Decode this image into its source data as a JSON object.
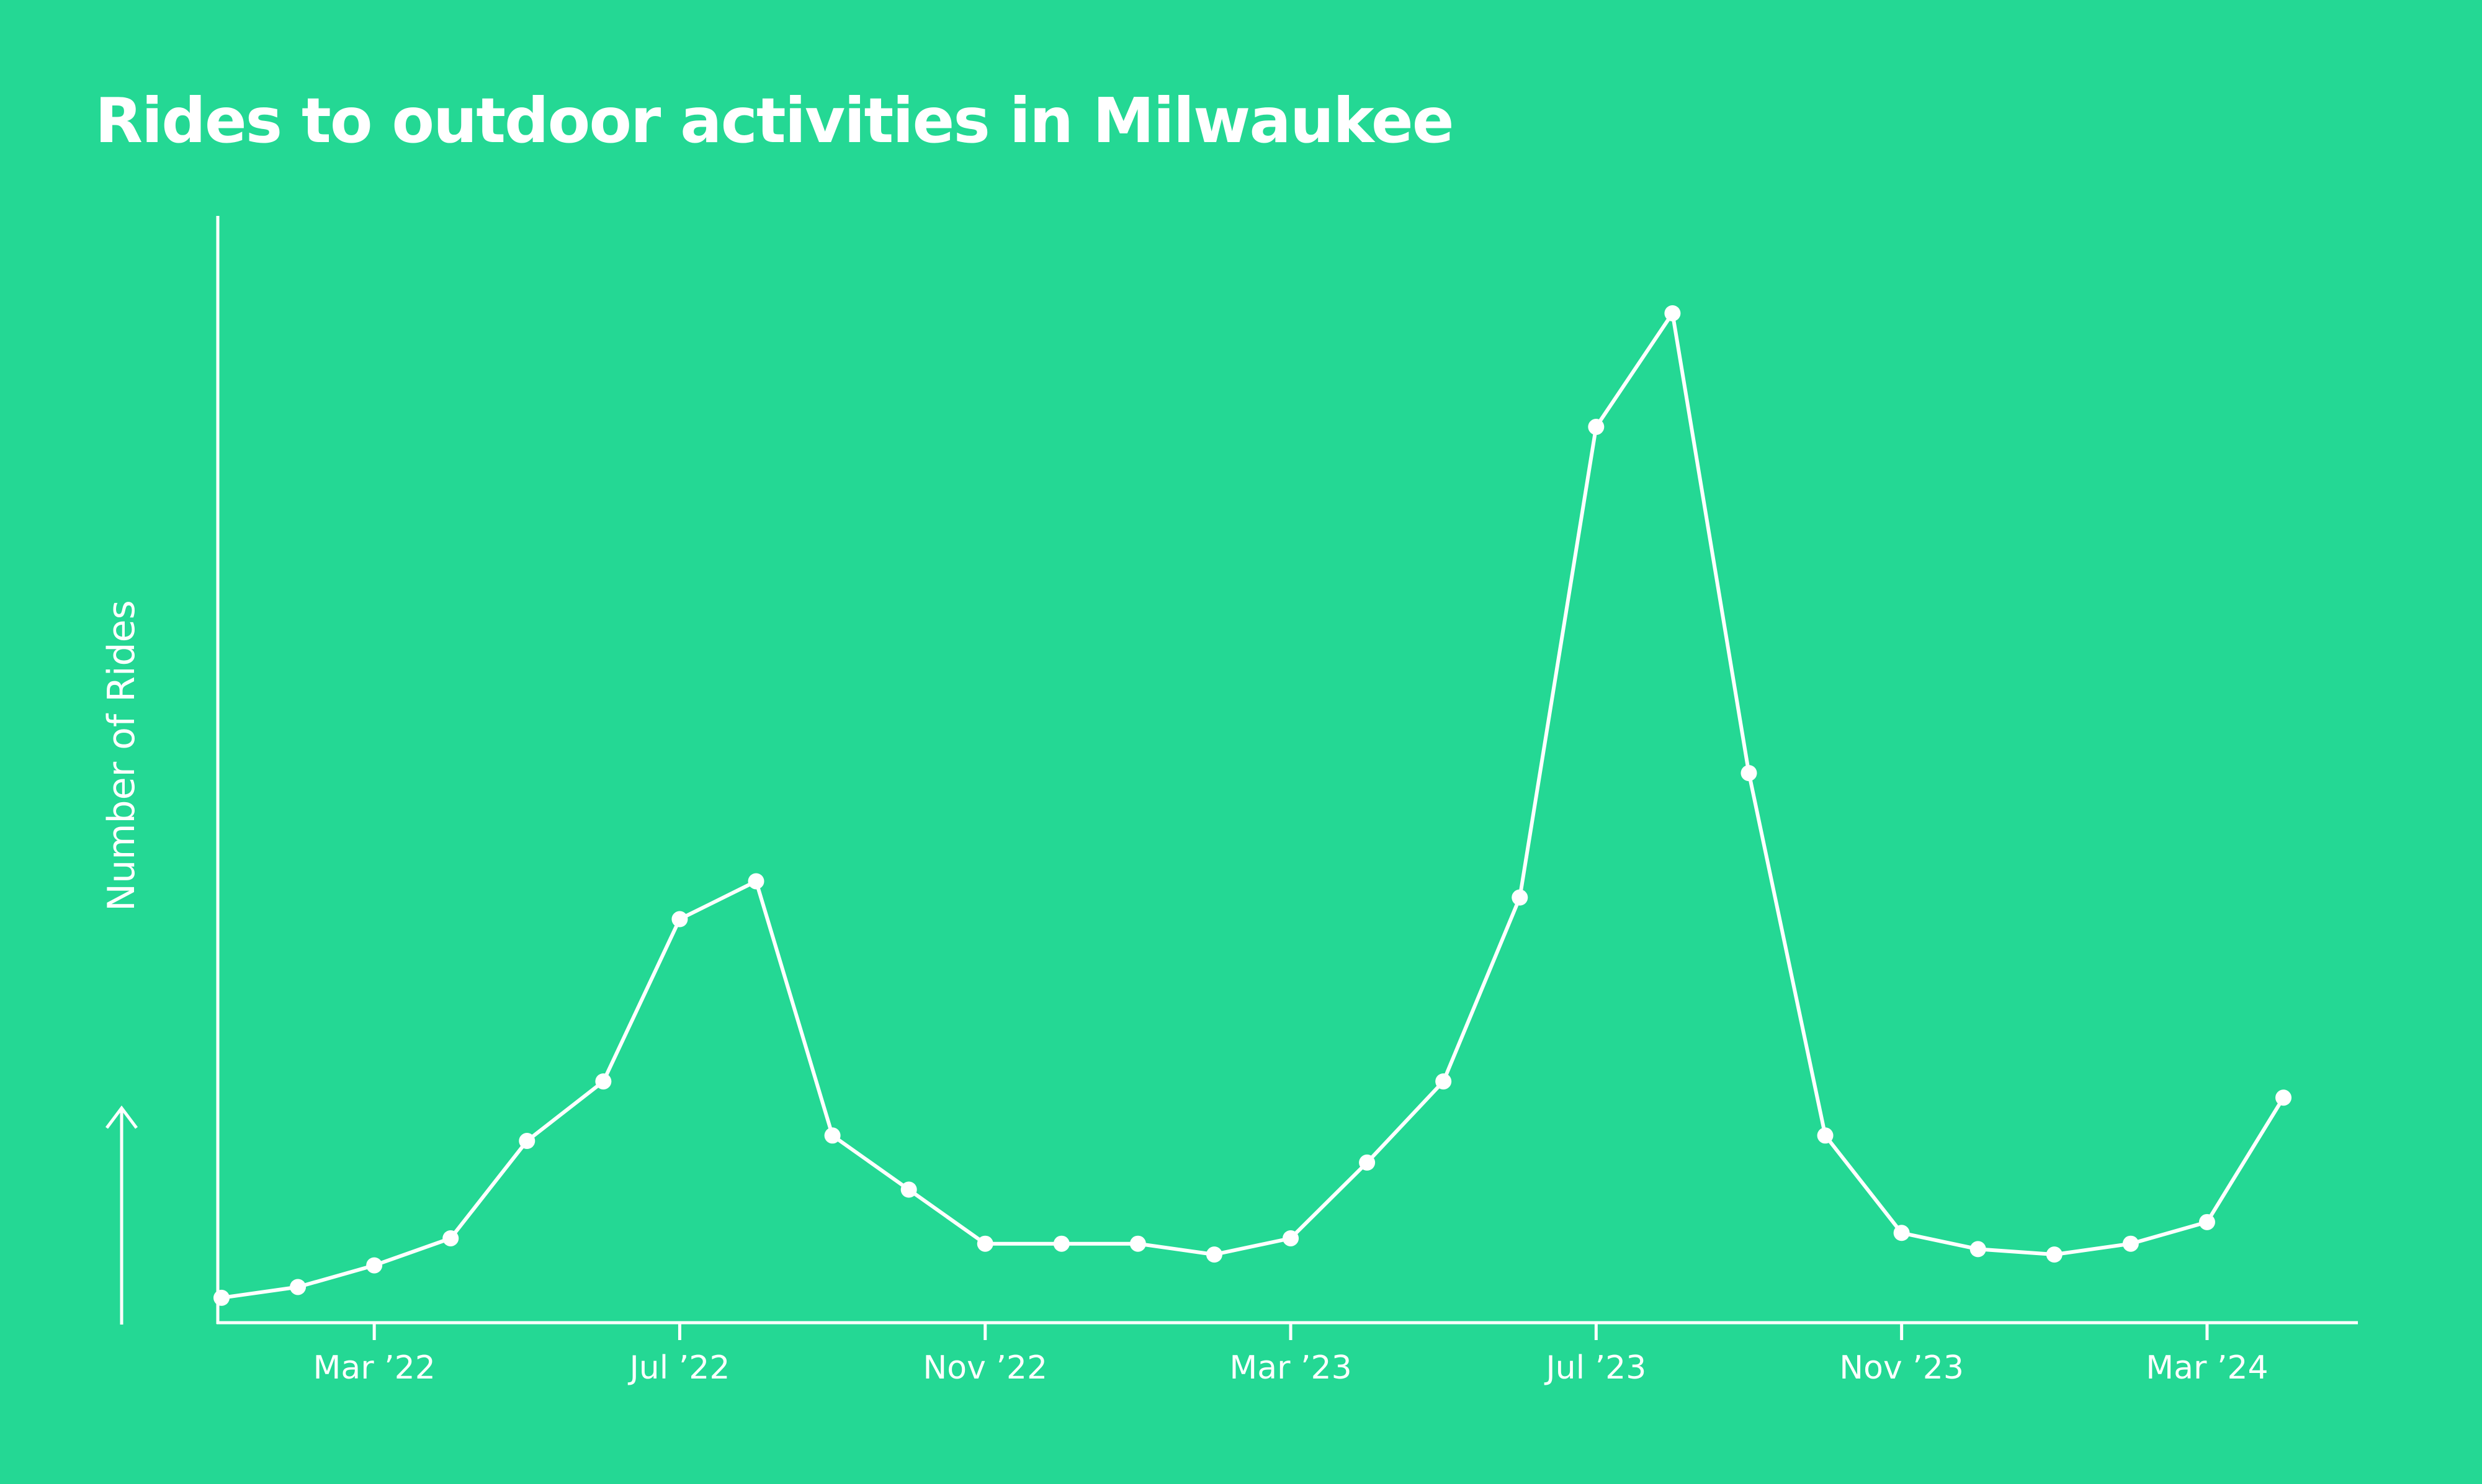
{
  "chart_data": {
    "type": "line",
    "title": "Rides to outdoor activities in Milwaukee",
    "xlabel": "",
    "ylabel": "Number of Rides",
    "x_ticks": [
      "Mar ’22",
      "Jul ’22",
      "Nov ’22",
      "Mar ’23",
      "Jul ’23",
      "Nov ’23",
      "Mar ’24"
    ],
    "x": [
      "Jan '22",
      "Feb '22",
      "Mar '22",
      "Apr '22",
      "May '22",
      "Jun '22",
      "Jul '22",
      "Aug '22",
      "Sep '22",
      "Oct '22",
      "Nov '22",
      "Dec '22",
      "Jan '23",
      "Feb '23",
      "Mar '23",
      "Apr '23",
      "May '23",
      "Jun '23",
      "Jul '23",
      "Aug '23",
      "Sep '23",
      "Oct '23",
      "Nov '23",
      "Dec '23",
      "Jan '24",
      "Feb '24",
      "Mar '24",
      "Apr '24"
    ],
    "series": [
      {
        "values": [
          1,
          2,
          4,
          6.5,
          15.5,
          21,
          36,
          39.5,
          16,
          11,
          6,
          6,
          6,
          5,
          6.5,
          13.5,
          21,
          38,
          81.5,
          92,
          49.5,
          16,
          7,
          5.5,
          5,
          6,
          8,
          19.5
        ]
      }
    ],
    "ylim": [
      -1.3,
      101
    ],
    "y_ticks_shown": false,
    "grid": false,
    "legend": "none",
    "colors": {
      "background": "#24D894",
      "line": "#ffffff",
      "text": "#ffffff"
    }
  }
}
